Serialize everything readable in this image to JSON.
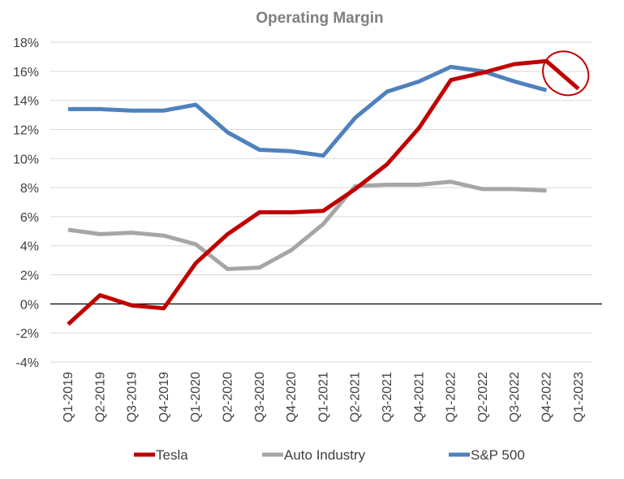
{
  "chart_data": {
    "type": "line",
    "title": "Operating Margin",
    "categories": [
      "Q1-2019",
      "Q2-2019",
      "Q3-2019",
      "Q4-2019",
      "Q1-2020",
      "Q2-2020",
      "Q3-2020",
      "Q4-2020",
      "Q1-2021",
      "Q2-2021",
      "Q3-2021",
      "Q4-2021",
      "Q1-2022",
      "Q2-2022",
      "Q3-2022",
      "Q4-2022",
      "Q1-2023"
    ],
    "ylim": [
      -4,
      18
    ],
    "yticks": [
      -4,
      -2,
      0,
      2,
      4,
      6,
      8,
      10,
      12,
      14,
      16,
      18
    ],
    "ytick_labels": [
      "-4%",
      "-2%",
      "0%",
      "2%",
      "4%",
      "6%",
      "8%",
      "10%",
      "12%",
      "14%",
      "16%",
      "18%"
    ],
    "grid": true,
    "legend_position": "bottom",
    "series": [
      {
        "name": "Tesla",
        "color": "#c00000",
        "values": [
          -1.4,
          0.6,
          -0.1,
          -0.3,
          2.8,
          4.8,
          6.3,
          6.3,
          6.4,
          7.9,
          9.6,
          12.1,
          15.4,
          15.9,
          16.5,
          16.7,
          14.8
        ]
      },
      {
        "name": "Auto Industry",
        "color": "#a6a6a6",
        "values": [
          5.1,
          4.8,
          4.9,
          4.7,
          4.1,
          2.4,
          2.5,
          3.7,
          5.5,
          8.1,
          8.2,
          8.2,
          8.4,
          7.9,
          7.9,
          7.8,
          null
        ]
      },
      {
        "name": "S&P 500",
        "color": "#4f81bd",
        "values": [
          13.4,
          13.4,
          13.3,
          13.3,
          13.7,
          11.8,
          10.6,
          10.5,
          10.2,
          12.8,
          14.6,
          15.3,
          16.3,
          16.0,
          15.3,
          14.7,
          null
        ]
      }
    ],
    "annotation": {
      "type": "circle",
      "color": "#c00000",
      "target_series": "Tesla",
      "x_range": [
        "Q4-2022",
        "Q1-2023"
      ]
    }
  }
}
